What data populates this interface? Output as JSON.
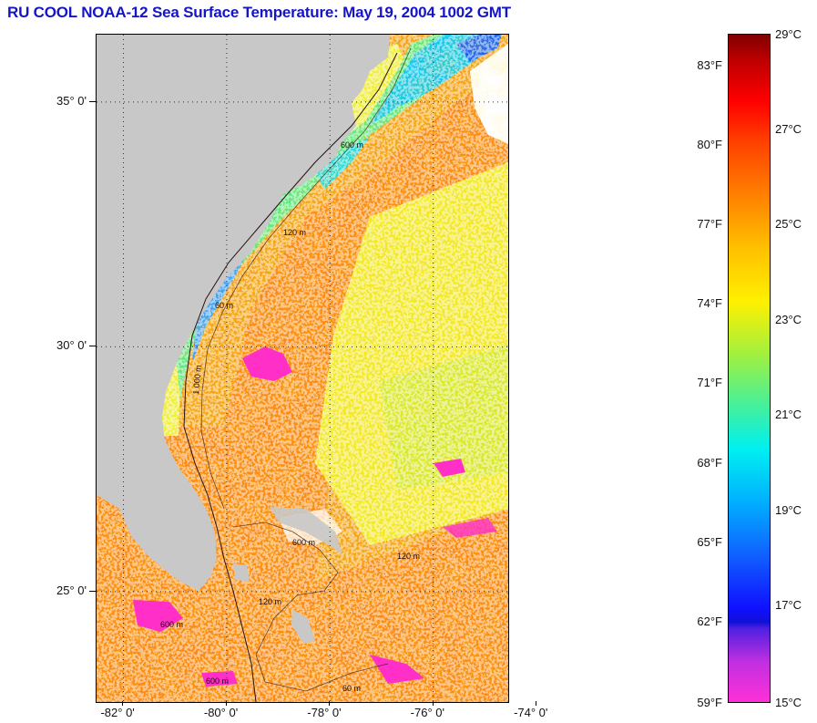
{
  "title": "RU COOL  NOAA-12  Sea Surface Temperature:  May 19, 2004 1002 GMT",
  "map": {
    "lat_labels": [
      {
        "label": "35° 0'",
        "lat": 35
      },
      {
        "label": "30° 0'",
        "lat": 30
      },
      {
        "label": "25° 0'",
        "lat": 25
      }
    ],
    "lon_labels": [
      {
        "label": "-82° 0'",
        "lon": -82
      },
      {
        "label": "-80° 0'",
        "lon": -80
      },
      {
        "label": "-78° 0'",
        "lon": -78
      },
      {
        "label": "-76° 0'",
        "lon": -76
      },
      {
        "label": "-74° 0'",
        "lon": -74
      }
    ],
    "contour_labels": [
      "600 m",
      "120 m",
      "60 m",
      "1 000 m",
      "600 m",
      "600 m",
      "120 m",
      "600 m",
      "120 m",
      "60 m"
    ],
    "colors": {
      "land": "#c8c8c8",
      "no_data": "#ffffff",
      "frame": "#000000"
    }
  },
  "colorbar": {
    "fahrenheit": [
      "83°F",
      "80°F",
      "77°F",
      "74°F",
      "71°F",
      "68°F",
      "65°F",
      "62°F",
      "59°F"
    ],
    "celsius": [
      "29°C",
      "27°C",
      "25°C",
      "23°C",
      "21°C",
      "19°C",
      "17°C",
      "15°C"
    ],
    "colors": [
      "#ff30d8",
      "#b040e0",
      "#1010d8",
      "#1060ff",
      "#00c8ff",
      "#00f0d0",
      "#60f060",
      "#c8f030",
      "#fff000",
      "#ffc000",
      "#ff8000",
      "#ff4000",
      "#ff0000",
      "#d00000",
      "#800000"
    ]
  }
}
